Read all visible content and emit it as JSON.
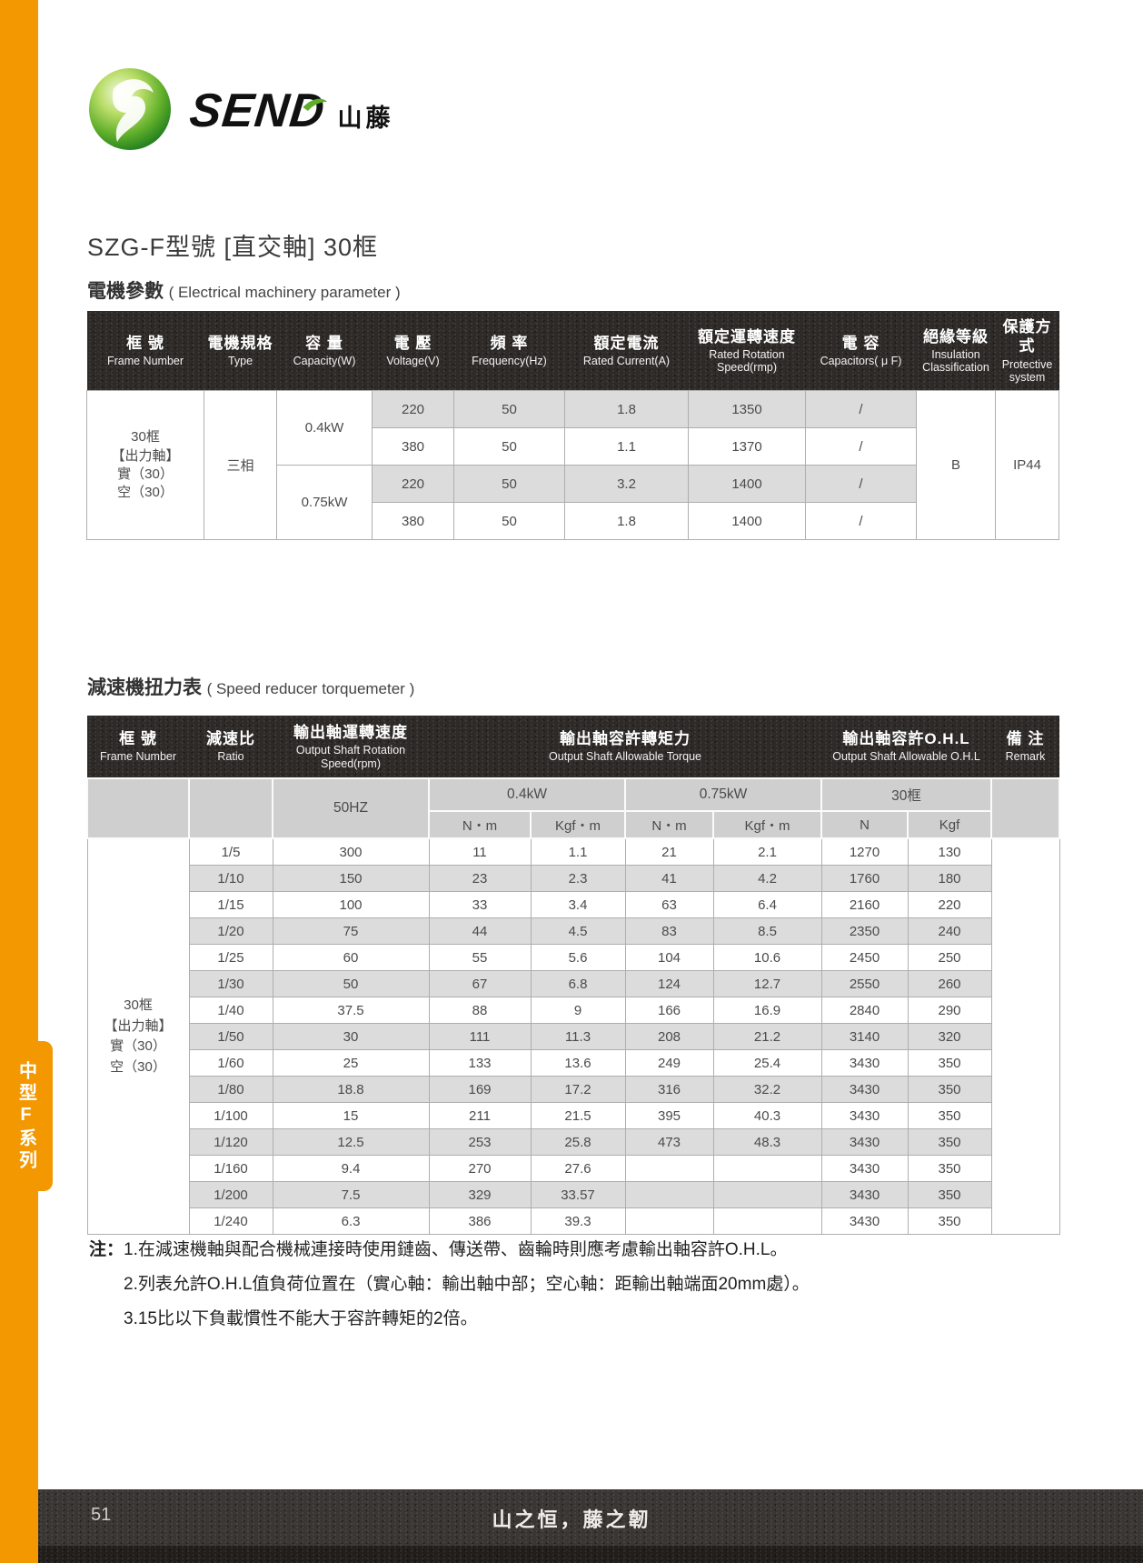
{
  "page": {
    "title": "SZG-F型號 [直交軸] 30框",
    "side_tab_label": "中型F系列",
    "brand": "SEND",
    "brand_cn": "山藤",
    "footer": {
      "page_number": "51",
      "slogan": "山之恒，藤之韌"
    }
  },
  "colors": {
    "accent_orange": "#F39800",
    "header_dark": "#2E2A27",
    "row_shade": "#DCDCDC",
    "subheader_gray": "#CFCFCF"
  },
  "section1": {
    "heading_cn": "電機參數",
    "heading_en": "( Electrical machinery parameter )",
    "table": {
      "headers": [
        {
          "cn": "框 號",
          "en": "Frame Number"
        },
        {
          "cn": "電機規格",
          "en": "Type"
        },
        {
          "cn": "容 量",
          "en": "Capacity(W)"
        },
        {
          "cn": "電 壓",
          "en": "Voltage(V)"
        },
        {
          "cn": "頻 率",
          "en": "Frequency(Hz)"
        },
        {
          "cn": "額定電流",
          "en": "Rated Current(A)"
        },
        {
          "cn": "額定運轉速度",
          "en": "Rated Rotation Speed(rmp)"
        },
        {
          "cn": "電 容",
          "en": "Capacitors( μ F)"
        },
        {
          "cn": "絕緣等級",
          "en": "Insulation Classification"
        },
        {
          "cn": "保護方式",
          "en": "Protective system"
        }
      ],
      "frame_lines": [
        "30框",
        "【出力軸】",
        "實（30）",
        "空（30）"
      ],
      "type": "三相",
      "groups": [
        {
          "capacity": "0.4kW",
          "rows": [
            [
              "220",
              "50",
              "1.8",
              "1350",
              "/"
            ],
            [
              "380",
              "50",
              "1.1",
              "1370",
              "/"
            ]
          ]
        },
        {
          "capacity": "0.75kW",
          "rows": [
            [
              "220",
              "50",
              "3.2",
              "1400",
              "/"
            ],
            [
              "380",
              "50",
              "1.8",
              "1400",
              "/"
            ]
          ]
        }
      ],
      "insulation": "B",
      "protective": "IP44"
    }
  },
  "section2": {
    "heading_cn": "減速機扭力表",
    "heading_en": "( Speed reducer torquemeter )",
    "table": {
      "headers": {
        "frame": {
          "cn": "框 號",
          "en": "Frame Number"
        },
        "ratio": {
          "cn": "減速比",
          "en": "Ratio"
        },
        "speed": {
          "cn": "輸出軸運轉速度",
          "en": "Output Shaft Rotation Speed(rpm)"
        },
        "torque": {
          "cn": "輸出軸容許轉矩力",
          "en": "Output Shaft Allowable Torque"
        },
        "ohl": {
          "cn": "輸出軸容許O.H.L",
          "en": "Output Shaft Allowable O.H.L"
        },
        "remark": {
          "cn": "備 注",
          "en": "Remark"
        }
      },
      "sub": {
        "speed": "50HZ",
        "kw04": "0.4kW",
        "kw075": "0.75kW",
        "frame30": "30框",
        "units": [
          "N・m",
          "Kgf・m",
          "N・m",
          "Kgf・m",
          "N",
          "Kgf"
        ]
      },
      "frame_lines": [
        "30框",
        "【出力軸】",
        "實（30）",
        "空（30）"
      ],
      "rows": [
        [
          "1/5",
          "300",
          "11",
          "1.1",
          "21",
          "2.1",
          "1270",
          "130"
        ],
        [
          "1/10",
          "150",
          "23",
          "2.3",
          "41",
          "4.2",
          "1760",
          "180"
        ],
        [
          "1/15",
          "100",
          "33",
          "3.4",
          "63",
          "6.4",
          "2160",
          "220"
        ],
        [
          "1/20",
          "75",
          "44",
          "4.5",
          "83",
          "8.5",
          "2350",
          "240"
        ],
        [
          "1/25",
          "60",
          "55",
          "5.6",
          "104",
          "10.6",
          "2450",
          "250"
        ],
        [
          "1/30",
          "50",
          "67",
          "6.8",
          "124",
          "12.7",
          "2550",
          "260"
        ],
        [
          "1/40",
          "37.5",
          "88",
          "9",
          "166",
          "16.9",
          "2840",
          "290"
        ],
        [
          "1/50",
          "30",
          "111",
          "11.3",
          "208",
          "21.2",
          "3140",
          "320"
        ],
        [
          "1/60",
          "25",
          "133",
          "13.6",
          "249",
          "25.4",
          "3430",
          "350"
        ],
        [
          "1/80",
          "18.8",
          "169",
          "17.2",
          "316",
          "32.2",
          "3430",
          "350"
        ],
        [
          "1/100",
          "15",
          "211",
          "21.5",
          "395",
          "40.3",
          "3430",
          "350"
        ],
        [
          "1/120",
          "12.5",
          "253",
          "25.8",
          "473",
          "48.3",
          "3430",
          "350"
        ],
        [
          "1/160",
          "9.4",
          "270",
          "27.6",
          "",
          "",
          "3430",
          "350"
        ],
        [
          "1/200",
          "7.5",
          "329",
          "33.57",
          "",
          "",
          "3430",
          "350"
        ],
        [
          "1/240",
          "6.3",
          "386",
          "39.3",
          "",
          "",
          "3430",
          "350"
        ]
      ]
    }
  },
  "notes": {
    "label": "注：",
    "items": [
      "1.在減速機軸與配合機械連接時使用鏈齒、傳送帶、齒輪時則應考慮輸出軸容許O.H.L。",
      "2.列表允許O.H.L值負荷位置在（實心軸：輸出軸中部；空心軸：距輸出軸端面20mm處）。",
      "3.15比以下負載慣性不能大于容許轉矩的2倍。"
    ]
  }
}
